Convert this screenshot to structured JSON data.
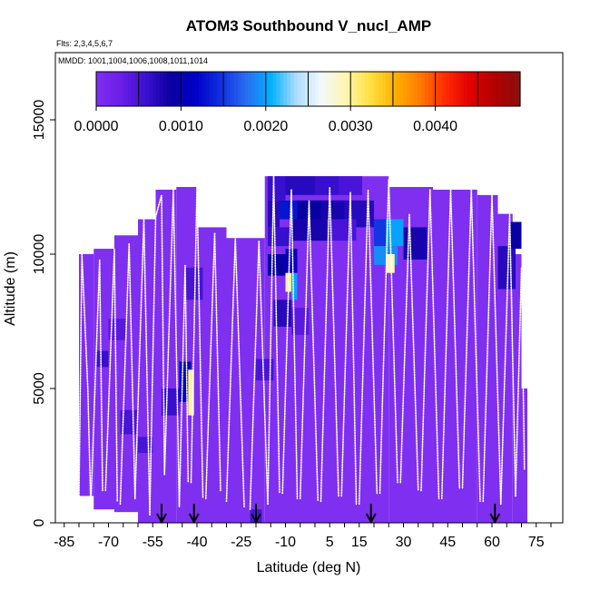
{
  "chart_data": {
    "type": "heatmap",
    "title": "ATOM3 Southbound V_nucl_AMP",
    "flights_label": "Flts: 2,3,4,5,6,7",
    "dates_label": "MMDD: 1001,1004,1006,1008,1011,1014",
    "xlabel": "Latitude (deg N)",
    "ylabel": "Altitude (m)",
    "xlim": [
      -88,
      84
    ],
    "ylim": [
      0,
      17500
    ],
    "x_ticks": [
      -85,
      -70,
      -55,
      -40,
      -25,
      -10,
      5,
      15,
      30,
      45,
      60,
      75
    ],
    "x_minor_ticks": [
      -85,
      -80,
      -75,
      -70,
      -65,
      -60,
      -55,
      -50,
      -45,
      -40,
      -35,
      -30,
      -25,
      -20,
      -15,
      -10,
      -5,
      0,
      5,
      10,
      15,
      20,
      25,
      30,
      35,
      40,
      45,
      50,
      55,
      60,
      65,
      70,
      75,
      80
    ],
    "y_ticks": [
      0,
      5000,
      10000,
      15000
    ],
    "colorbar": {
      "min": 0,
      "max": 0.005,
      "tick_values": [
        0,
        0.001,
        0.002,
        0.003,
        0.004
      ],
      "tick_labels": [
        "0.0000",
        "0.0010",
        "0.0020",
        "0.0030",
        "0.0040"
      ],
      "colors": [
        "#7f2ff0",
        "#6a1ee6",
        "#3b10d0",
        "#0a00a0",
        "#0000c8",
        "#1030e0",
        "#2a6cf0",
        "#00b0ff",
        "#a9dcff",
        "#f2f7ff",
        "#fff6b0",
        "#ffe040",
        "#ffb000",
        "#ff7a00",
        "#ff2a00",
        "#e00000",
        "#b00000",
        "#8a1010"
      ]
    },
    "background_value": 0.0,
    "coverage_by_lat_band": [
      {
        "lat": [
          -80,
          -75
        ],
        "alt": [
          1000,
          10000
        ]
      },
      {
        "lat": [
          -75,
          -68
        ],
        "alt": [
          500,
          10200
        ]
      },
      {
        "lat": [
          -68,
          -60
        ],
        "alt": [
          400,
          10700
        ]
      },
      {
        "lat": [
          -60,
          -54
        ],
        "alt": [
          0,
          11300
        ]
      },
      {
        "lat": [
          -54,
          -47
        ],
        "alt": [
          0,
          12400
        ]
      },
      {
        "lat": [
          -47,
          -40
        ],
        "alt": [
          0,
          12500
        ]
      },
      {
        "lat": [
          -40,
          -30
        ],
        "alt": [
          0,
          11000
        ]
      },
      {
        "lat": [
          -30,
          -17
        ],
        "alt": [
          0,
          10600
        ]
      },
      {
        "lat": [
          -17,
          25
        ],
        "alt": [
          0,
          12900
        ]
      },
      {
        "lat": [
          25,
          40
        ],
        "alt": [
          0,
          12500
        ]
      },
      {
        "lat": [
          40,
          55
        ],
        "alt": [
          0,
          12400
        ]
      },
      {
        "lat": [
          55,
          62
        ],
        "alt": [
          0,
          12200
        ]
      },
      {
        "lat": [
          62,
          67
        ],
        "alt": [
          0,
          11500
        ]
      },
      {
        "lat": [
          67,
          70
        ],
        "alt": [
          0,
          10000
        ]
      },
      {
        "lat": [
          70,
          72
        ],
        "alt": [
          0,
          5000
        ]
      }
    ],
    "cells": [
      {
        "lat": [
          -16,
          -10
        ],
        "alt": [
          12000,
          12900
        ],
        "value": 0.0006
      },
      {
        "lat": [
          -10,
          0
        ],
        "alt": [
          12200,
          12900
        ],
        "value": 0.0007
      },
      {
        "lat": [
          0,
          8
        ],
        "alt": [
          12200,
          12900
        ],
        "value": 0.0006
      },
      {
        "lat": [
          8,
          16
        ],
        "alt": [
          12200,
          12900
        ],
        "value": 0.0005
      },
      {
        "lat": [
          -16,
          -12
        ],
        "alt": [
          11000,
          12000
        ],
        "value": 0.0007
      },
      {
        "lat": [
          -12,
          -6
        ],
        "alt": [
          11300,
          12000
        ],
        "value": 0.0013
      },
      {
        "lat": [
          -6,
          2
        ],
        "alt": [
          11300,
          12000
        ],
        "value": 0.0009
      },
      {
        "lat": [
          2,
          10
        ],
        "alt": [
          11300,
          12000
        ],
        "value": 0.0008
      },
      {
        "lat": [
          10,
          20
        ],
        "alt": [
          11000,
          12000
        ],
        "value": 0.0007
      },
      {
        "lat": [
          -16,
          -8
        ],
        "alt": [
          10300,
          11000
        ],
        "value": 0.0006
      },
      {
        "lat": [
          -8,
          4
        ],
        "alt": [
          10500,
          11300
        ],
        "value": 0.0008
      },
      {
        "lat": [
          4,
          14
        ],
        "alt": [
          10500,
          11300
        ],
        "value": 0.0005
      },
      {
        "lat": [
          -16,
          -10
        ],
        "alt": [
          9200,
          10000
        ],
        "value": 0.0009
      },
      {
        "lat": [
          -10,
          -6
        ],
        "alt": [
          9300,
          10200
        ],
        "value": 0.0011
      },
      {
        "lat": [
          -10,
          -8
        ],
        "alt": [
          8600,
          9300
        ],
        "value": 0.003
      },
      {
        "lat": [
          -8,
          -6
        ],
        "alt": [
          8300,
          9300
        ],
        "value": 0.002
      },
      {
        "lat": [
          -14,
          -8
        ],
        "alt": [
          7300,
          8300
        ],
        "value": 0.0007
      },
      {
        "lat": [
          -8,
          -2
        ],
        "alt": [
          7000,
          8000
        ],
        "value": 0.0004
      },
      {
        "lat": [
          20,
          24
        ],
        "alt": [
          10300,
          11300
        ],
        "value": 0.0015
      },
      {
        "lat": [
          24,
          30
        ],
        "alt": [
          10300,
          11300
        ],
        "value": 0.002
      },
      {
        "lat": [
          20,
          28
        ],
        "alt": [
          9600,
          10300
        ],
        "value": 0.0019
      },
      {
        "lat": [
          24,
          27
        ],
        "alt": [
          9300,
          10000
        ],
        "value": 0.0029
      },
      {
        "lat": [
          30,
          38
        ],
        "alt": [
          9800,
          11000
        ],
        "value": 0.0008
      },
      {
        "lat": [
          -44,
          -38
        ],
        "alt": [
          8300,
          9500
        ],
        "value": 0.0005
      },
      {
        "lat": [
          -46,
          -42
        ],
        "alt": [
          4500,
          6000
        ],
        "value": 0.0011
      },
      {
        "lat": [
          -43,
          -41
        ],
        "alt": [
          4000,
          5700
        ],
        "value": 0.003
      },
      {
        "lat": [
          -52,
          -46
        ],
        "alt": [
          4000,
          5000
        ],
        "value": 0.0006
      },
      {
        "lat": [
          -66,
          -60
        ],
        "alt": [
          3300,
          4200
        ],
        "value": 0.0005
      },
      {
        "lat": [
          -74,
          -70
        ],
        "alt": [
          5800,
          6400
        ],
        "value": 0.0006
      },
      {
        "lat": [
          -70,
          -64
        ],
        "alt": [
          6800,
          7600
        ],
        "value": 0.0004
      },
      {
        "lat": [
          -60,
          -55
        ],
        "alt": [
          2600,
          3200
        ],
        "value": 0.0005
      },
      {
        "lat": [
          -20,
          -14
        ],
        "alt": [
          5300,
          6100
        ],
        "value": 0.0005
      },
      {
        "lat": [
          62,
          68
        ],
        "alt": [
          8700,
          10300
        ],
        "value": 0.0007
      },
      {
        "lat": [
          66,
          70
        ],
        "alt": [
          10200,
          11200
        ],
        "value": 0.0009
      },
      {
        "lat": [
          -22,
          -18
        ],
        "alt": [
          0,
          500
        ],
        "value": 0.0005
      }
    ],
    "profiles": [
      [
        [
          -80,
          1000
        ],
        [
          -79,
          10000
        ],
        [
          -77,
          5000
        ],
        [
          -76,
          600
        ]
      ],
      [
        [
          -76,
          600
        ],
        [
          -73,
          9800
        ],
        [
          -72,
          1200
        ]
      ],
      [
        [
          -71,
          1200
        ],
        [
          -68,
          10200
        ],
        [
          -67,
          800
        ]
      ],
      [
        [
          -66,
          700
        ],
        [
          -63,
          10400
        ],
        [
          -61,
          900
        ]
      ],
      [
        [
          -61,
          900
        ],
        [
          -58,
          11300
        ],
        [
          -56,
          300
        ]
      ],
      [
        [
          -56,
          300
        ],
        [
          -54,
          11400
        ],
        [
          -52,
          12200
        ],
        [
          -51,
          1800
        ]
      ],
      [
        [
          -51,
          1800
        ],
        [
          -48,
          12400
        ],
        [
          -46,
          600
        ]
      ],
      [
        [
          -46,
          600
        ],
        [
          -44,
          9600
        ],
        [
          -43,
          1500
        ]
      ],
      [
        [
          -42,
          1500
        ],
        [
          -40,
          12500
        ],
        [
          -38,
          900
        ]
      ],
      [
        [
          -37,
          900
        ],
        [
          -34,
          10800
        ],
        [
          -32,
          1200
        ]
      ],
      [
        [
          -30,
          800
        ],
        [
          -27,
          10600
        ],
        [
          -24,
          600
        ]
      ],
      [
        [
          -22,
          500
        ],
        [
          -19,
          10500
        ],
        [
          -16,
          700
        ]
      ],
      [
        [
          -16,
          700
        ],
        [
          -14,
          12900
        ],
        [
          -12,
          1100
        ]
      ],
      [
        [
          -11,
          1100
        ],
        [
          -8,
          12400
        ],
        [
          -6,
          900
        ]
      ],
      [
        [
          -5,
          900
        ],
        [
          -2,
          12000
        ],
        [
          1,
          800
        ]
      ],
      [
        [
          2,
          800
        ],
        [
          5,
          12500
        ],
        [
          8,
          1000
        ]
      ],
      [
        [
          9,
          1000
        ],
        [
          12,
          12300
        ],
        [
          14,
          700
        ]
      ],
      [
        [
          15,
          700
        ],
        [
          18,
          12400
        ],
        [
          21,
          1100
        ]
      ],
      [
        [
          22,
          1100
        ],
        [
          25,
          12800
        ],
        [
          26,
          9000
        ],
        [
          28,
          1500
        ]
      ],
      [
        [
          29,
          1500
        ],
        [
          32,
          11500
        ],
        [
          35,
          1200
        ]
      ],
      [
        [
          36,
          1200
        ],
        [
          39,
          12400
        ],
        [
          42,
          900
        ]
      ],
      [
        [
          43,
          900
        ],
        [
          46,
          12400
        ],
        [
          49,
          1300
        ]
      ],
      [
        [
          50,
          1300
        ],
        [
          53,
          12400
        ],
        [
          56,
          800
        ]
      ],
      [
        [
          57,
          800
        ],
        [
          60,
          12200
        ],
        [
          63,
          700
        ]
      ],
      [
        [
          63,
          700
        ],
        [
          66,
          11500
        ],
        [
          68,
          1000
        ]
      ],
      [
        [
          68,
          1000
        ],
        [
          70,
          9500
        ],
        [
          71,
          2000
        ]
      ]
    ],
    "flight_markers_lat": [
      -52,
      -41,
      -20,
      19,
      61
    ]
  }
}
